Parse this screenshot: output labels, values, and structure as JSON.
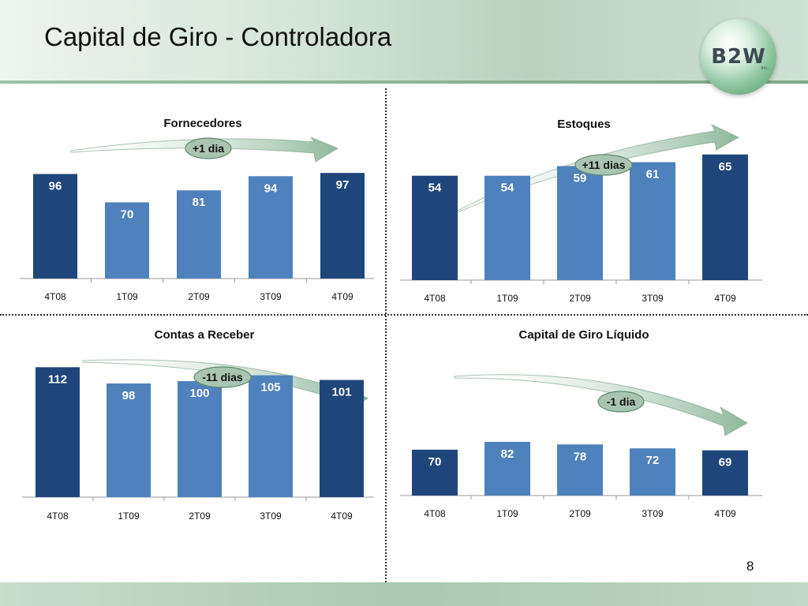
{
  "slide": {
    "title": "Capital de Giro - Controladora",
    "logo_text": "B2W",
    "logo_sub": "Inc.",
    "page_number": "8"
  },
  "colors": {
    "dark_bar": "#1f467a",
    "light_bar": "#4f81bd",
    "arrow": "#8fb89c",
    "badge_fill": "#a9c5b2"
  },
  "chart_data": [
    {
      "type": "bar",
      "title": "Fornecedores",
      "categories": [
        "4T08",
        "1T09",
        "2T09",
        "3T09",
        "4T09"
      ],
      "values": [
        96,
        70,
        81,
        94,
        97
      ],
      "shades": [
        "dark",
        "light",
        "light",
        "light",
        "dark"
      ],
      "trend_label": "+1 dia",
      "trend_direction": "up"
    },
    {
      "type": "bar",
      "title": "Estoques",
      "categories": [
        "4T08",
        "1T09",
        "2T09",
        "3T09",
        "4T09"
      ],
      "values": [
        54,
        54,
        59,
        61,
        65
      ],
      "shades": [
        "dark",
        "light",
        "light",
        "light",
        "dark"
      ],
      "trend_label": "+11 dias",
      "trend_direction": "up"
    },
    {
      "type": "bar",
      "title": "Contas a Receber",
      "categories": [
        "4T08",
        "1T09",
        "2T09",
        "3T09",
        "4T09"
      ],
      "values": [
        112,
        98,
        100,
        105,
        101
      ],
      "shades": [
        "dark",
        "light",
        "light",
        "light",
        "dark"
      ],
      "trend_label": "-11 dias",
      "trend_direction": "down"
    },
    {
      "type": "bar",
      "title": "Capital de Giro Líquido",
      "categories": [
        "4T08",
        "1T09",
        "2T09",
        "3T09",
        "4T09"
      ],
      "values": [
        70,
        82,
        78,
        72,
        69
      ],
      "shades": [
        "dark",
        "light",
        "light",
        "light",
        "dark"
      ],
      "trend_label": "-1 dia",
      "trend_direction": "down"
    }
  ]
}
